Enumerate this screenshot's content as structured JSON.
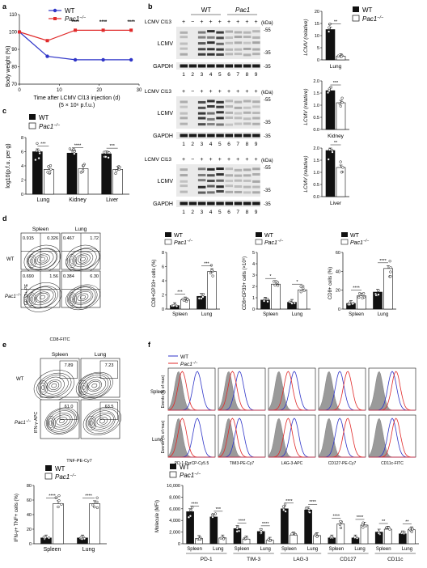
{
  "panel_letters": [
    "a",
    "b",
    "c",
    "d",
    "e",
    "f"
  ],
  "legend": {
    "wt": "WT",
    "ko": "Pac1",
    "ko_sup": "−/−"
  },
  "colors": {
    "wt": "#2f35c8",
    "ko": "#e02a2a",
    "bar_ko": "#ffffff",
    "bar_wt": "#111111",
    "iso": "#9a9a9a"
  },
  "panel_a": {
    "ylabel": "Body weight (%)",
    "xlabel": "Time after LCMV Cl13 injection (d)",
    "xlabel2": "(5 × 10⁶ p.f.u.)",
    "yticks": [
      "70",
      "80",
      "90",
      "100",
      "110"
    ],
    "xticks": [
      "0",
      "10",
      "20",
      "30"
    ],
    "stars": [
      "****",
      "****",
      "****"
    ]
  },
  "panel_b": {
    "header_wt": "WT",
    "header_ko": "Pac1",
    "cl13_label": "LCMV Cl13",
    "signs": "+ − + + + + + + +",
    "lane_nums": [
      "1",
      "2",
      "3",
      "4",
      "5",
      "6",
      "7",
      "8",
      "9"
    ],
    "lcmv": "LCMV",
    "gapdh": "GAPDH",
    "kda": "(kDa)",
    "mw_top": [
      "55",
      "35"
    ],
    "mw_gapdh": "35",
    "charts": [
      {
        "ylabel": "LCMV (relative)",
        "xlabel": "Lung",
        "stars": "**",
        "yticks": [
          "0",
          "5",
          "10",
          "15",
          "20"
        ]
      },
      {
        "ylabel": "LCMV (relative)",
        "xlabel": "Kidney",
        "stars": "***",
        "yticks": [
          "0.0",
          "0.5",
          "1.0",
          "1.5",
          "2.0"
        ]
      },
      {
        "ylabel": "LCMV (relative)",
        "xlabel": "Liver",
        "stars": "**",
        "yticks": [
          "0.0",
          "0.5",
          "1.0",
          "1.5",
          "2.0"
        ]
      }
    ]
  },
  "panel_c": {
    "ylabel": "log10(p.f.u. per g)",
    "groups": [
      "Lung",
      "Kidney",
      "Liver"
    ],
    "stars": [
      "***",
      "****",
      "***"
    ],
    "yticks": [
      "0",
      "2",
      "4",
      "6",
      "8"
    ]
  },
  "panel_d": {
    "col_heads": [
      "Spleen",
      "Lung"
    ],
    "row_labels": [
      "WT",
      "Pac1"
    ],
    "quad_nums": [
      [
        "0.915",
        "0.326",
        "0.467",
        "1.72"
      ],
      [
        "0.690",
        "1.56",
        "0.384",
        "6.30"
      ]
    ],
    "xaxis": "CD8-FITC",
    "yaxis": "GP33+-PE",
    "charts": [
      {
        "ylabel": "CD8+GP33+ cells (%)",
        "stars": [
          "***",
          "***"
        ],
        "yticks": [
          "0",
          "2",
          "4",
          "6",
          "8"
        ]
      },
      {
        "ylabel": "CD8+GP33+ cells (×10⁶)",
        "stars": [
          "*",
          "*"
        ],
        "yticks": [
          "0",
          "1",
          "2",
          "3",
          "4",
          "5"
        ]
      },
      {
        "ylabel": "CD8+ cells (%)",
        "stars": [
          "****",
          "****"
        ],
        "yticks": [
          "0",
          "20",
          "40",
          "60"
        ]
      }
    ],
    "groups": [
      "Spleen",
      "Lung"
    ]
  },
  "panel_e": {
    "col_heads": [
      "Spleen",
      "Lung"
    ],
    "row_labels": [
      "WT",
      "Pac1"
    ],
    "gate_nums": [
      [
        "7.89",
        "7.23"
      ],
      [
        "61.0",
        "63.5"
      ]
    ],
    "xaxis": "TNF-PE-Cy7",
    "yaxis": "IFN-γ-APC",
    "chart": {
      "ylabel": "IFN-γ+ TNF+ cells (%)",
      "stars": [
        "****",
        "****"
      ],
      "groups": [
        "Spleen",
        "Lung"
      ],
      "yticks": [
        "0",
        "20",
        "40",
        "60",
        "80"
      ]
    }
  },
  "panel_f": {
    "row_labels": [
      "Spleen",
      "Lung"
    ],
    "yaxis": "Events (% of max)",
    "markers": [
      "PD-1-PerCP-Cy5.5",
      "TIM3-PE-Cy7",
      "LAG-3-APC",
      "CD127-PE-Cy7",
      "CD11c-FITC"
    ],
    "chart": {
      "ylabel": "Molecule (MFI)",
      "yticks": [
        "0",
        "2,000",
        "4,000",
        "6,000",
        "8,000",
        "10,000"
      ],
      "groups": [
        "PD-1",
        "TIM-3",
        "LAG-3",
        "CD127",
        "CD11c"
      ],
      "sub": [
        "Spleen",
        "Lung"
      ],
      "stars": [
        "****",
        "***",
        "****",
        "****",
        "****",
        "****",
        "****",
        "****",
        "**",
        "**"
      ]
    }
  },
  "chart_data": [
    {
      "type": "line",
      "title": "",
      "xlabel": "Time after LCMV Cl13 injection (d)",
      "ylabel": "Body weight (%)",
      "x": [
        0,
        7,
        14,
        21,
        28
      ],
      "ylim": [
        70,
        110
      ],
      "series": [
        {
          "name": "WT",
          "values": [
            100,
            86,
            84,
            84,
            84
          ]
        },
        {
          "name": "Pac1−/−",
          "values": [
            100,
            95,
            101,
            101,
            101
          ]
        }
      ]
    },
    {
      "type": "bar",
      "xlabel": "Lung",
      "ylabel": "LCMV (relative)",
      "categories": [
        "WT",
        "Pac1−/−"
      ],
      "values": [
        12.5,
        1.5
      ],
      "ylim": [
        0,
        20
      ]
    },
    {
      "type": "bar",
      "xlabel": "Kidney",
      "ylabel": "LCMV (relative)",
      "categories": [
        "WT",
        "Pac1−/−"
      ],
      "values": [
        1.6,
        1.1
      ],
      "ylim": [
        0,
        2
      ]
    },
    {
      "type": "bar",
      "xlabel": "Liver",
      "ylabel": "LCMV (relative)",
      "categories": [
        "WT",
        "Pac1−/−"
      ],
      "values": [
        1.9,
        1.2
      ],
      "ylim": [
        0,
        2
      ]
    },
    {
      "type": "bar",
      "ylabel": "log10(p.f.u. per g)",
      "categories": [
        "Lung",
        "Kidney",
        "Liver"
      ],
      "series": [
        {
          "name": "WT",
          "values": [
            6.0,
            5.8,
            5.7
          ]
        },
        {
          "name": "Pac1−/−",
          "values": [
            3.5,
            3.6,
            3.5
          ]
        }
      ],
      "ylim": [
        0,
        8
      ]
    },
    {
      "type": "bar",
      "ylabel": "CD8+GP33+ cells (%)",
      "categories": [
        "Spleen",
        "Lung"
      ],
      "series": [
        {
          "name": "WT",
          "values": [
            0.5,
            1.8
          ]
        },
        {
          "name": "Pac1−/−",
          "values": [
            1.3,
            5.3
          ]
        }
      ],
      "ylim": [
        0,
        8
      ]
    },
    {
      "type": "bar",
      "ylabel": "CD8+GP33+ cells (×10⁶)",
      "categories": [
        "Spleen",
        "Lung"
      ],
      "series": [
        {
          "name": "WT",
          "values": [
            0.8,
            0.6
          ]
        },
        {
          "name": "Pac1−/−",
          "values": [
            2.2,
            1.7
          ]
        }
      ],
      "ylim": [
        0,
        5
      ]
    },
    {
      "type": "bar",
      "ylabel": "CD8+ cells (%)",
      "categories": [
        "Spleen",
        "Lung"
      ],
      "series": [
        {
          "name": "WT",
          "values": [
            6,
            18
          ]
        },
        {
          "name": "Pac1−/−",
          "values": [
            14,
            43
          ]
        }
      ],
      "ylim": [
        0,
        60
      ]
    },
    {
      "type": "bar",
      "ylabel": "IFN-γ+ TNF+ cells (%)",
      "categories": [
        "Spleen",
        "Lung"
      ],
      "series": [
        {
          "name": "WT",
          "values": [
            8,
            8
          ]
        },
        {
          "name": "Pac1−/−",
          "values": [
            55,
            55
          ]
        }
      ],
      "ylim": [
        0,
        80
      ]
    },
    {
      "type": "bar",
      "ylabel": "Molecule (MFI)",
      "categories": [
        "PD-1 Spleen",
        "PD-1 Lung",
        "TIM-3 Spleen",
        "TIM-3 Lung",
        "LAG-3 Spleen",
        "LAG-3 Lung",
        "CD127 Spleen",
        "CD127 Lung",
        "CD11c Spleen",
        "CD11c Lung"
      ],
      "series": [
        {
          "name": "WT",
          "values": [
            5500,
            4600,
            2600,
            2100,
            6000,
            5800,
            1000,
            1000,
            2000,
            1700
          ]
        },
        {
          "name": "Pac1−/−",
          "values": [
            900,
            1000,
            800,
            600,
            1500,
            1400,
            3400,
            3200,
            2500,
            2400
          ]
        }
      ],
      "ylim": [
        0,
        10000
      ]
    }
  ]
}
